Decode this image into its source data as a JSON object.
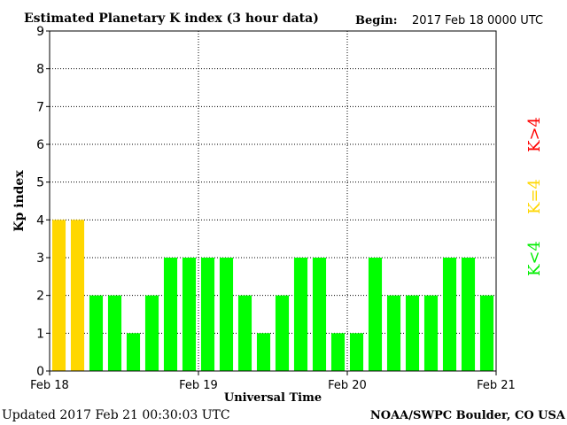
{
  "header": {
    "title": "Estimated Planetary K index (3 hour data)",
    "begin_label": "Begin:",
    "begin_value": "2017 Feb 18 0000 UTC"
  },
  "footer": {
    "updated": "Updated 2017 Feb 21 00:30:03 UTC",
    "source": "NOAA/SWPC Boulder, CO USA"
  },
  "legend": {
    "high": "K>4",
    "mid": "K=4",
    "low": "K<4"
  },
  "colors": {
    "low": "#00ff00",
    "mid": "#ffd700",
    "high": "#ff0000",
    "grid": "#000000",
    "axis": "#000000"
  },
  "chart_data": {
    "type": "bar",
    "title": "Estimated Planetary K index (3 hour data)",
    "xlabel": "Universal Time",
    "ylabel": "Kp index",
    "ylim": [
      0,
      9
    ],
    "yticks": [
      0,
      1,
      2,
      3,
      4,
      5,
      6,
      7,
      8,
      9
    ],
    "xticks": [
      "Feb 18",
      "Feb 19",
      "Feb 20",
      "Feb 21"
    ],
    "interval_hours": 3,
    "values": [
      4,
      4,
      2,
      2,
      1,
      2,
      3,
      3,
      3,
      3,
      2,
      1,
      2,
      3,
      3,
      1,
      1,
      3,
      2,
      2,
      2,
      3,
      3,
      2
    ],
    "grid": true,
    "legend_position": "right"
  }
}
